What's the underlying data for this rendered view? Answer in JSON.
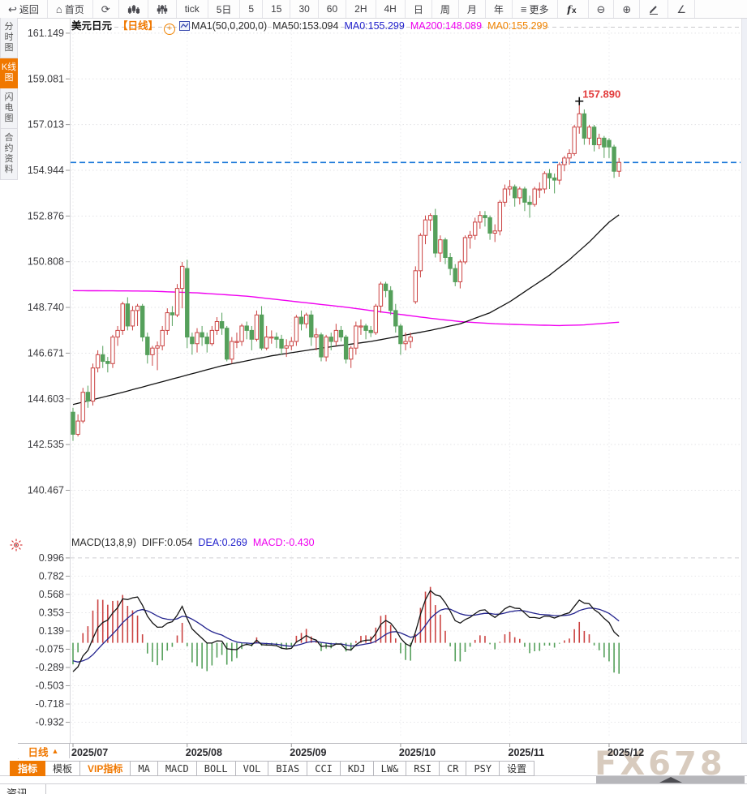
{
  "toolbar": {
    "items": [
      {
        "id": "back",
        "icon": "back-arrow",
        "label": "返回"
      },
      {
        "id": "home",
        "icon": "home",
        "label": "首页"
      },
      {
        "id": "refresh",
        "icon": "refresh",
        "label": ""
      },
      {
        "id": "chart-type",
        "icon": "candle-chart",
        "label": ""
      },
      {
        "id": "indicator-settings",
        "icon": "sliders",
        "label": ""
      },
      {
        "id": "tick",
        "icon": "",
        "label": "tick"
      },
      {
        "id": "5d",
        "icon": "",
        "label": "5日"
      },
      {
        "id": "m5",
        "icon": "",
        "label": "5"
      },
      {
        "id": "m15",
        "icon": "",
        "label": "15"
      },
      {
        "id": "m30",
        "icon": "",
        "label": "30"
      },
      {
        "id": "m60",
        "icon": "",
        "label": "60"
      },
      {
        "id": "h2",
        "icon": "",
        "label": "2H"
      },
      {
        "id": "h4",
        "icon": "",
        "label": "4H"
      },
      {
        "id": "day",
        "icon": "",
        "label": "日"
      },
      {
        "id": "week",
        "icon": "",
        "label": "周"
      },
      {
        "id": "month",
        "icon": "",
        "label": "月"
      },
      {
        "id": "year",
        "icon": "",
        "label": "年"
      },
      {
        "id": "more",
        "icon": "menu",
        "label": "更多"
      },
      {
        "id": "fx-indicator",
        "icon": "fx",
        "label": ""
      },
      {
        "id": "zoom-out",
        "icon": "zoom-out",
        "label": ""
      },
      {
        "id": "zoom-in",
        "icon": "zoom-in",
        "label": ""
      },
      {
        "id": "draw",
        "icon": "pencil",
        "label": ""
      },
      {
        "id": "angle",
        "icon": "angle",
        "label": ""
      }
    ]
  },
  "sidebar": {
    "items": [
      {
        "id": "time-chart",
        "label": "分时图",
        "active": false
      },
      {
        "id": "kline-chart",
        "label": "K线图",
        "active": true
      },
      {
        "id": "lightning-chart",
        "label": "闪电图",
        "active": false
      },
      {
        "id": "contract-info",
        "label": "合约资料",
        "active": false
      }
    ]
  },
  "legend": {
    "symbol": "美元日元",
    "period_tag": "【日线】",
    "ma_group": "MA1(50,0,200,0)",
    "ma50": "MA50:153.094",
    "ma0_blue": "MA0:155.299",
    "ma200": "MA200:148.089",
    "ma0_orange": "MA0:155.299"
  },
  "macd_legend": {
    "title": "MACD(13,8,9)",
    "diff": "DIFF:0.054",
    "dea": "DEA:0.269",
    "macd": "MACD:-0.430"
  },
  "period_box": {
    "label": "日线",
    "arrow": "▲"
  },
  "bottom_tabs": [
    {
      "label": "指标",
      "active": true,
      "zh": true
    },
    {
      "label": "模板",
      "zh": true
    },
    {
      "label": "VIP指标",
      "vip": true,
      "zh": true
    },
    {
      "label": "MA"
    },
    {
      "label": "MACD"
    },
    {
      "label": "BOLL"
    },
    {
      "label": "VOL"
    },
    {
      "label": "BIAS"
    },
    {
      "label": "CCI"
    },
    {
      "label": "KDJ"
    },
    {
      "label": "LW&"
    },
    {
      "label": "RSI"
    },
    {
      "label": "CR"
    },
    {
      "label": "PSY"
    },
    {
      "label": "设置",
      "zh": true
    }
  ],
  "news_tab_label": "资讯",
  "watermark": "FX678",
  "colors": {
    "accent_orange": "#f07800",
    "up_red": "#cb4342",
    "down_green": "#55a05b",
    "ma50_black": "#111111",
    "ma200_magenta": "#f000f0",
    "dea_blue": "#23238e",
    "price_line_blue": "#1a78d9",
    "annotation_red": "#e23b3b"
  },
  "chart_data": {
    "type": "candlestick",
    "title": "美元日元 日线 (USD/JPY Daily)",
    "price_axis_ticks": [
      "161.149",
      "159.081",
      "157.013",
      "154.944",
      "152.876",
      "150.808",
      "148.740",
      "146.671",
      "144.603",
      "142.535",
      "140.467"
    ],
    "x_ticks": [
      {
        "index": 0,
        "label": "2025/07"
      },
      {
        "index": 23,
        "label": "2025/08"
      },
      {
        "index": 44,
        "label": "2025/09"
      },
      {
        "index": 66,
        "label": "2025/10"
      },
      {
        "index": 88,
        "label": "2025/11"
      },
      {
        "index": 108,
        "label": "2025/12"
      }
    ],
    "current_price_line": 155.299,
    "annotation": {
      "text": "157.890",
      "value": 157.89
    },
    "candles": [
      [
        144.0,
        144.2,
        142.7,
        143.0
      ],
      [
        143.0,
        143.9,
        142.9,
        143.6
      ],
      [
        143.6,
        145.1,
        143.5,
        144.9
      ],
      [
        144.9,
        145.2,
        144.2,
        144.5
      ],
      [
        144.5,
        146.2,
        144.3,
        146.0
      ],
      [
        146.0,
        146.8,
        145.8,
        146.6
      ],
      [
        146.6,
        147.0,
        146.0,
        146.3
      ],
      [
        146.3,
        146.5,
        145.8,
        146.2
      ],
      [
        146.2,
        147.5,
        146.0,
        147.4
      ],
      [
        147.4,
        147.9,
        147.0,
        147.7
      ],
      [
        147.7,
        149.0,
        147.5,
        148.9
      ],
      [
        148.9,
        149.2,
        147.7,
        147.9
      ],
      [
        147.9,
        148.8,
        147.7,
        148.6
      ],
      [
        148.6,
        148.9,
        147.9,
        148.8
      ],
      [
        148.8,
        148.9,
        147.2,
        147.4
      ],
      [
        147.4,
        147.6,
        146.2,
        146.6
      ],
      [
        146.6,
        147.0,
        146.1,
        146.9
      ],
      [
        146.9,
        147.2,
        145.9,
        147.0
      ],
      [
        147.0,
        147.9,
        146.8,
        147.7
      ],
      [
        147.7,
        148.7,
        147.5,
        148.5
      ],
      [
        148.5,
        148.8,
        147.9,
        148.4
      ],
      [
        148.4,
        149.8,
        148.3,
        149.6
      ],
      [
        149.6,
        150.8,
        148.7,
        150.6
      ],
      [
        150.5,
        150.9,
        146.9,
        147.4
      ],
      [
        147.4,
        147.6,
        146.6,
        147.1
      ],
      [
        147.1,
        147.8,
        146.7,
        147.6
      ],
      [
        147.6,
        147.9,
        147.0,
        147.4
      ],
      [
        147.4,
        147.6,
        146.7,
        147.1
      ],
      [
        147.1,
        147.9,
        147.0,
        147.7
      ],
      [
        147.7,
        148.3,
        147.5,
        148.1
      ],
      [
        148.1,
        148.5,
        147.5,
        147.8
      ],
      [
        147.8,
        147.9,
        146.3,
        146.4
      ],
      [
        146.4,
        147.4,
        146.2,
        147.2
      ],
      [
        147.2,
        147.6,
        146.9,
        147.2
      ],
      [
        147.2,
        148.0,
        147.0,
        147.9
      ],
      [
        147.9,
        148.1,
        147.3,
        147.7
      ],
      [
        147.7,
        147.9,
        146.8,
        147.3
      ],
      [
        147.3,
        148.6,
        147.2,
        148.4
      ],
      [
        148.4,
        148.8,
        146.8,
        146.9
      ],
      [
        146.9,
        147.9,
        146.8,
        147.4
      ],
      [
        147.4,
        147.7,
        147.1,
        147.4
      ],
      [
        147.4,
        147.6,
        146.9,
        147.3
      ],
      [
        147.3,
        147.5,
        146.6,
        146.9
      ],
      [
        146.9,
        147.3,
        146.5,
        147.0
      ],
      [
        147.0,
        147.4,
        146.8,
        147.2
      ],
      [
        147.2,
        148.4,
        147.0,
        148.3
      ],
      [
        148.3,
        148.6,
        147.7,
        148.0
      ],
      [
        148.0,
        148.5,
        147.8,
        148.4
      ],
      [
        148.4,
        148.6,
        147.0,
        147.4
      ],
      [
        147.4,
        147.8,
        146.8,
        147.5
      ],
      [
        147.5,
        147.6,
        146.3,
        146.5
      ],
      [
        146.5,
        147.5,
        146.3,
        147.4
      ],
      [
        147.4,
        147.6,
        146.8,
        147.2
      ],
      [
        147.2,
        148.0,
        147.0,
        147.7
      ],
      [
        147.7,
        147.9,
        147.2,
        147.4
      ],
      [
        147.4,
        147.5,
        146.2,
        146.4
      ],
      [
        146.4,
        147.0,
        146.0,
        146.9
      ],
      [
        146.9,
        148.1,
        146.6,
        147.9
      ],
      [
        147.9,
        148.2,
        147.5,
        147.9
      ],
      [
        147.9,
        148.0,
        147.3,
        147.7
      ],
      [
        147.7,
        147.9,
        147.4,
        147.6
      ],
      [
        147.6,
        148.9,
        147.5,
        148.8
      ],
      [
        148.8,
        149.9,
        148.5,
        149.8
      ],
      [
        149.8,
        149.9,
        149.2,
        149.5
      ],
      [
        149.5,
        149.7,
        148.4,
        148.6
      ],
      [
        148.6,
        148.9,
        147.6,
        147.9
      ],
      [
        147.9,
        148.0,
        146.6,
        147.1
      ],
      [
        147.1,
        147.6,
        146.8,
        147.2
      ],
      [
        147.2,
        147.6,
        146.9,
        147.4
      ],
      [
        149.0,
        150.6,
        148.9,
        150.4
      ],
      [
        150.4,
        152.1,
        150.1,
        152.0
      ],
      [
        152.0,
        152.9,
        151.6,
        152.7
      ],
      [
        152.7,
        153.0,
        152.2,
        152.9
      ],
      [
        152.9,
        153.2,
        151.0,
        151.2
      ],
      [
        151.2,
        152.0,
        150.8,
        151.8
      ],
      [
        151.8,
        151.9,
        150.7,
        151.0
      ],
      [
        151.0,
        151.2,
        150.2,
        150.5
      ],
      [
        150.5,
        150.7,
        149.7,
        149.9
      ],
      [
        149.9,
        150.9,
        149.6,
        150.8
      ],
      [
        150.8,
        152.0,
        150.7,
        151.9
      ],
      [
        151.9,
        152.2,
        151.4,
        152.0
      ],
      [
        152.0,
        152.8,
        151.8,
        152.6
      ],
      [
        152.6,
        153.1,
        152.3,
        152.9
      ],
      [
        152.9,
        153.1,
        152.4,
        152.8
      ],
      [
        152.8,
        152.9,
        151.8,
        152.1
      ],
      [
        152.1,
        152.5,
        151.7,
        152.2
      ],
      [
        152.2,
        153.6,
        152.0,
        153.5
      ],
      [
        153.5,
        154.3,
        153.3,
        154.1
      ],
      [
        154.1,
        154.5,
        153.8,
        154.2
      ],
      [
        154.2,
        154.3,
        153.3,
        153.7
      ],
      [
        153.7,
        154.2,
        153.4,
        154.1
      ],
      [
        154.1,
        154.2,
        153.1,
        153.5
      ],
      [
        153.5,
        153.8,
        152.8,
        153.4
      ],
      [
        153.4,
        154.2,
        153.3,
        154.1
      ],
      [
        154.1,
        154.4,
        153.7,
        154.1
      ],
      [
        154.1,
        154.9,
        153.9,
        154.8
      ],
      [
        154.8,
        155.0,
        154.1,
        154.6
      ],
      [
        154.6,
        154.8,
        153.9,
        154.5
      ],
      [
        154.5,
        155.3,
        154.3,
        155.2
      ],
      [
        155.2,
        155.6,
        154.9,
        155.5
      ],
      [
        155.5,
        155.9,
        155.2,
        155.7
      ],
      [
        155.7,
        157.0,
        155.6,
        156.9
      ],
      [
        156.9,
        157.89,
        156.6,
        157.5
      ],
      [
        157.5,
        157.7,
        156.1,
        156.4
      ],
      [
        156.4,
        157.0,
        156.1,
        156.9
      ],
      [
        156.9,
        157.0,
        155.8,
        156.1
      ],
      [
        156.1,
        156.6,
        155.9,
        156.4
      ],
      [
        156.4,
        156.5,
        155.5,
        156.0
      ],
      [
        156.3,
        156.4,
        155.5,
        156.0
      ],
      [
        156.0,
        156.1,
        154.6,
        154.9
      ],
      [
        154.9,
        155.5,
        154.65,
        155.3
      ]
    ],
    "ma50_keypoints": [
      [
        0,
        144.35
      ],
      [
        10,
        144.9
      ],
      [
        20,
        145.5
      ],
      [
        30,
        146.1
      ],
      [
        40,
        146.55
      ],
      [
        50,
        146.9
      ],
      [
        55,
        147.05
      ],
      [
        60,
        147.2
      ],
      [
        66,
        147.45
      ],
      [
        72,
        147.7
      ],
      [
        78,
        148.0
      ],
      [
        84,
        148.5
      ],
      [
        88,
        149.0
      ],
      [
        92,
        149.6
      ],
      [
        96,
        150.2
      ],
      [
        100,
        150.9
      ],
      [
        104,
        151.7
      ],
      [
        108,
        152.6
      ],
      [
        111,
        153.094
      ]
    ],
    "ma200_keypoints": [
      [
        0,
        149.5
      ],
      [
        15,
        149.48
      ],
      [
        25,
        149.4
      ],
      [
        35,
        149.25
      ],
      [
        45,
        149.0
      ],
      [
        55,
        148.75
      ],
      [
        65,
        148.45
      ],
      [
        72,
        148.25
      ],
      [
        78,
        148.1
      ],
      [
        85,
        148.0
      ],
      [
        92,
        147.95
      ],
      [
        98,
        147.92
      ],
      [
        103,
        147.95
      ],
      [
        107,
        148.02
      ],
      [
        111,
        148.089
      ]
    ],
    "macd": {
      "params": "13,8,9",
      "axis_ticks": [
        "0.996",
        "0.782",
        "0.568",
        "0.353",
        "0.139",
        "-0.075",
        "-0.289",
        "-0.503",
        "-0.718",
        "-0.932"
      ],
      "diff_last": 0.054,
      "dea_last": 0.269,
      "hist_last": -0.43,
      "ema_fast": 8,
      "ema_slow": 13,
      "signal": 9,
      "seed_fast": 143.6,
      "seed_slow": 144.05,
      "seed_dea": -0.18,
      "scale": 0.78
    }
  }
}
